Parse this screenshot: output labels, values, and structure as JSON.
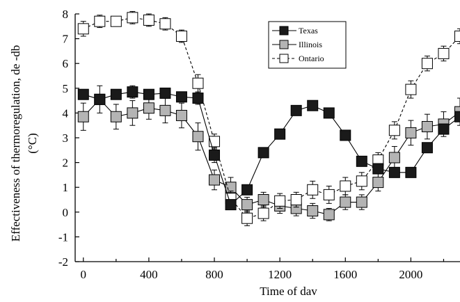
{
  "chart_data": {
    "type": "line",
    "xlabel": "Time of dav",
    "ylabel_lines": [
      "Effectiveness of thermoregulation, de -db",
      "(°C)"
    ],
    "xlim": [
      -50,
      2300
    ],
    "ylim": [
      -2,
      8
    ],
    "xticks": [
      0,
      400,
      800,
      1200,
      1600,
      2000
    ],
    "yticks": [
      -2,
      -1,
      0,
      1,
      2,
      3,
      4,
      5,
      6,
      7,
      8
    ],
    "legend_position": "top-right",
    "series": [
      {
        "name": "Texas",
        "marker": "square-filled",
        "line_style": "solid",
        "color": "#000000",
        "x": [
          0,
          100,
          200,
          300,
          400,
          500,
          600,
          700,
          800,
          900,
          1000,
          1100,
          1200,
          1300,
          1400,
          1500,
          1600,
          1700,
          1800,
          1900,
          2000,
          2100,
          2200,
          2300
        ],
        "y": [
          4.75,
          4.55,
          4.75,
          4.85,
          4.75,
          4.8,
          4.65,
          4.6,
          2.3,
          0.3,
          0.9,
          2.4,
          3.15,
          4.1,
          4.3,
          4.0,
          3.1,
          2.05,
          1.75,
          1.6,
          1.6,
          2.6,
          3.35,
          3.85
        ],
        "err": [
          0.2,
          0.2,
          0.2,
          0.25,
          0.2,
          0.2,
          0.2,
          0.25,
          0.3,
          0.2,
          0.2,
          0.2,
          0.2,
          0.2,
          0.15,
          0.2,
          0.2,
          0.2,
          0.2,
          0.15,
          0.15,
          0.2,
          0.2,
          0.2
        ]
      },
      {
        "name": "Illinois",
        "marker": "square-gray",
        "line_style": "solid",
        "color": "#aaaaaa",
        "x": [
          0,
          100,
          200,
          300,
          400,
          500,
          600,
          700,
          800,
          900,
          1000,
          1100,
          1200,
          1300,
          1400,
          1500,
          1600,
          1700,
          1800,
          1900,
          2000,
          2100,
          2200,
          2300
        ],
        "y": [
          3.85,
          4.55,
          3.85,
          4.0,
          4.2,
          4.1,
          3.9,
          3.05,
          1.3,
          1.0,
          0.3,
          0.5,
          0.25,
          0.15,
          0.05,
          -0.1,
          0.4,
          0.4,
          1.2,
          2.2,
          3.2,
          3.45,
          3.55,
          4.05
        ],
        "err": [
          0.55,
          0.55,
          0.5,
          0.5,
          0.45,
          0.5,
          0.5,
          0.55,
          0.4,
          0.4,
          0.3,
          0.3,
          0.3,
          0.3,
          0.3,
          0.25,
          0.3,
          0.3,
          0.35,
          0.45,
          0.5,
          0.5,
          0.5,
          0.55
        ]
      },
      {
        "name": "Ontario",
        "marker": "square-open",
        "line_style": "dashed",
        "color": "#ffffff",
        "x": [
          0,
          100,
          200,
          300,
          400,
          500,
          600,
          700,
          800,
          900,
          1000,
          1100,
          1200,
          1300,
          1400,
          1500,
          1600,
          1700,
          1800,
          1900,
          2000,
          2100,
          2200,
          2300
        ],
        "y": [
          7.4,
          7.7,
          7.7,
          7.85,
          7.75,
          7.6,
          7.1,
          5.2,
          2.85,
          0.55,
          -0.25,
          -0.05,
          0.45,
          0.5,
          0.9,
          0.7,
          1.05,
          1.25,
          2.1,
          3.3,
          4.95,
          6.0,
          6.4,
          7.1
        ],
        "err": [
          0.3,
          0.25,
          0.2,
          0.25,
          0.25,
          0.25,
          0.25,
          0.35,
          0.3,
          0.3,
          0.3,
          0.3,
          0.3,
          0.3,
          0.35,
          0.35,
          0.35,
          0.35,
          0.3,
          0.35,
          0.35,
          0.3,
          0.3,
          0.3
        ]
      }
    ]
  }
}
